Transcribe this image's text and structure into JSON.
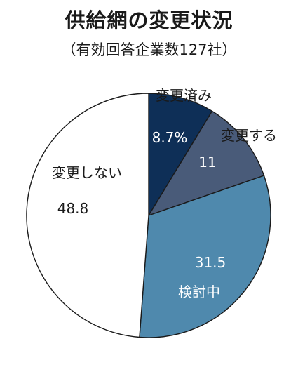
{
  "chart_data": {
    "type": "pie",
    "title": "供給網の変更状況",
    "subtitle": "（有効回答企業数127社）",
    "slices": [
      {
        "label": "変更済み",
        "value": 8.7,
        "value_text": "8.7%",
        "color": "#0e2f57",
        "text_color": "#ffffff"
      },
      {
        "label": "変更する",
        "value": 11,
        "value_text": "11",
        "color": "#495b79",
        "text_color": "#ffffff"
      },
      {
        "label": "検討中",
        "value": 31.5,
        "value_text": "31.5",
        "color": "#4f89ad",
        "text_color": "#ffffff"
      },
      {
        "label": "変更しない",
        "value": 48.8,
        "value_text": "48.8",
        "color": "#ffffff",
        "text_color": "#1a1a1a"
      }
    ]
  }
}
